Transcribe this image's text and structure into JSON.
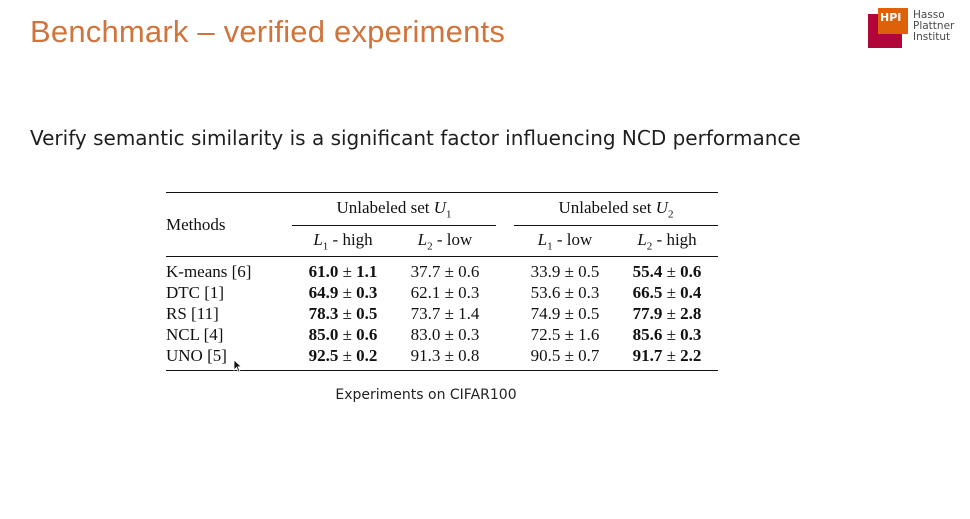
{
  "slide": {
    "title": "Benchmark – verified experiments",
    "subtitle": "Verify semantic similarity is a significant factor influencing NCD performance",
    "caption": "Experiments on CIFAR100"
  },
  "logo": {
    "mark": "HPI",
    "line1": "Hasso",
    "line2": "Plattner",
    "line3": "Institut",
    "colors": {
      "front": "#dd6108",
      "back": "#b1063a"
    }
  },
  "table": {
    "methods_header": "Methods",
    "group1": {
      "label": "Unlabeled set",
      "var": "U",
      "sub": "1"
    },
    "group2": {
      "label": "Unlabeled set",
      "var": "U",
      "sub": "2"
    },
    "columns": [
      {
        "var": "L",
        "sub": "1",
        "rest": " - high"
      },
      {
        "var": "L",
        "sub": "2",
        "rest": " - low"
      },
      {
        "var": "L",
        "sub": "1",
        "rest": " - low"
      },
      {
        "var": "L",
        "sub": "2",
        "rest": " - high"
      }
    ],
    "rows": [
      {
        "method": "K-means [6]",
        "cells": [
          {
            "v": "61.0",
            "e": "1.1",
            "bold": true
          },
          {
            "v": "37.7",
            "e": "0.6",
            "bold": false
          },
          {
            "v": "33.9",
            "e": "0.5",
            "bold": false
          },
          {
            "v": "55.4",
            "e": "0.6",
            "bold": true
          }
        ]
      },
      {
        "method": "DTC [1]",
        "cells": [
          {
            "v": "64.9",
            "e": "0.3",
            "bold": true
          },
          {
            "v": "62.1",
            "e": "0.3",
            "bold": false
          },
          {
            "v": "53.6",
            "e": "0.3",
            "bold": false
          },
          {
            "v": "66.5",
            "e": "0.4",
            "bold": true
          }
        ]
      },
      {
        "method": "RS [11]",
        "cells": [
          {
            "v": "78.3",
            "e": "0.5",
            "bold": true
          },
          {
            "v": "73.7",
            "e": "1.4",
            "bold": false
          },
          {
            "v": "74.9",
            "e": "0.5",
            "bold": false
          },
          {
            "v": "77.9",
            "e": "2.8",
            "bold": true
          }
        ]
      },
      {
        "method": "NCL [4]",
        "cells": [
          {
            "v": "85.0",
            "e": "0.6",
            "bold": true
          },
          {
            "v": "83.0",
            "e": "0.3",
            "bold": false
          },
          {
            "v": "72.5",
            "e": "1.6",
            "bold": false
          },
          {
            "v": "85.6",
            "e": "0.3",
            "bold": true
          }
        ]
      },
      {
        "method": "UNO [5]",
        "cells": [
          {
            "v": "92.5",
            "e": "0.2",
            "bold": true
          },
          {
            "v": "91.3",
            "e": "0.8",
            "bold": false
          },
          {
            "v": "90.5",
            "e": "0.7",
            "bold": false
          },
          {
            "v": "91.7",
            "e": "2.2",
            "bold": true
          }
        ]
      }
    ]
  }
}
